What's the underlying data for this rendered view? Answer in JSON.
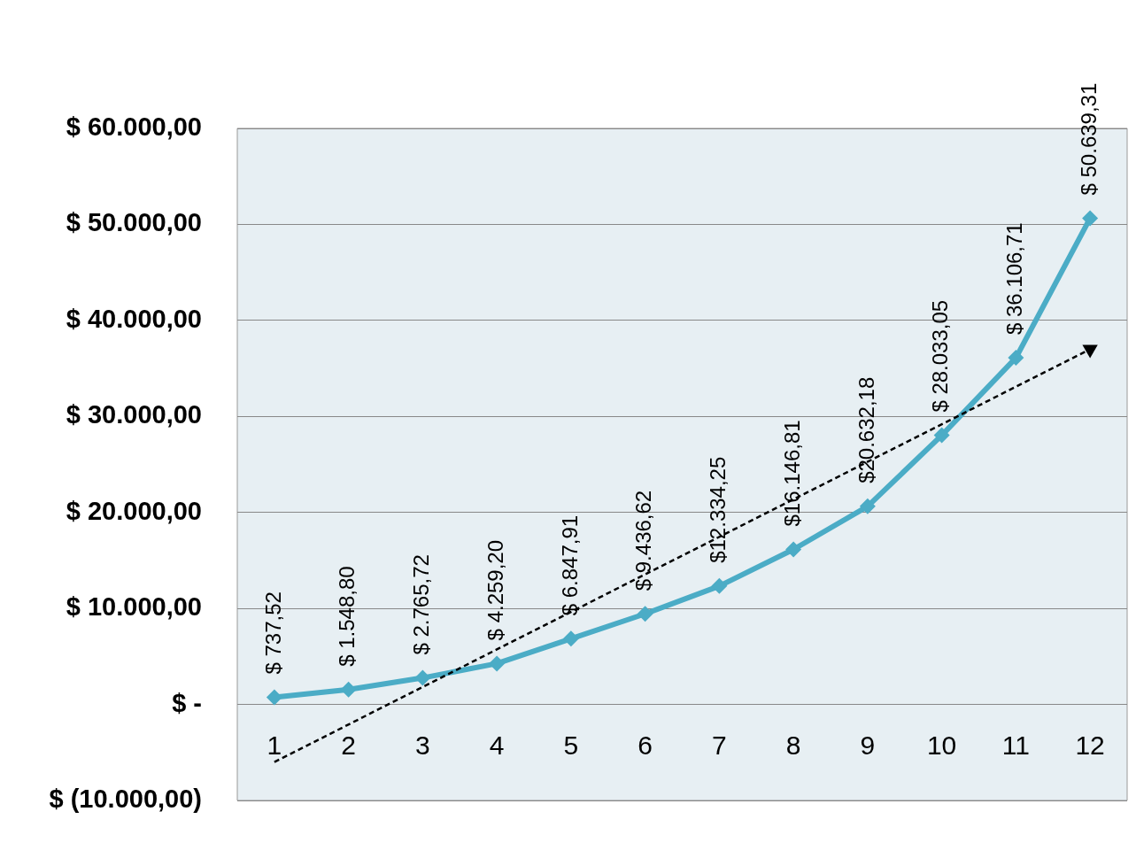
{
  "chart_data": {
    "type": "line",
    "x": [
      1,
      2,
      3,
      4,
      5,
      6,
      7,
      8,
      9,
      10,
      11,
      12
    ],
    "xlim": [
      0.5,
      12.5
    ],
    "xticks": [
      1,
      2,
      3,
      4,
      5,
      6,
      7,
      8,
      9,
      10,
      11,
      12
    ],
    "ylim": [
      -10000,
      60000
    ],
    "yticks": [
      {
        "value": -10000,
        "label": "$ (10.000,00)"
      },
      {
        "value": 0,
        "label": "$ -"
      },
      {
        "value": 10000,
        "label": "$ 10.000,00"
      },
      {
        "value": 20000,
        "label": "$ 20.000,00"
      },
      {
        "value": 30000,
        "label": "$ 30.000,00"
      },
      {
        "value": 40000,
        "label": "$ 40.000,00"
      },
      {
        "value": 50000,
        "label": "$ 50.000,00"
      },
      {
        "value": 60000,
        "label": "$ 60.000,00"
      }
    ],
    "grid": "y",
    "legend": false,
    "series": [
      {
        "color": "#4bacc6",
        "marker": "diamond",
        "line_style": "solid",
        "values": [
          737.52,
          1548.8,
          2765.72,
          4259.2,
          6847.91,
          9436.62,
          12334.25,
          16146.81,
          20632.18,
          28033.05,
          36106.71,
          50639.31
        ],
        "value_labels": [
          "$ 737,52",
          "$ 1.548,80",
          "$ 2.765,72",
          "$ 4.259,20",
          "$ 6.847,91",
          "$ 9.436,62",
          "$12.334,25",
          "$16.146,81",
          "$20.632,18",
          "$ 28.033,05",
          "$ 36.106,71",
          "$ 50.639,31"
        ]
      },
      {
        "type": "line",
        "color": "#000000",
        "marker": "triangle",
        "line_style": "dashed",
        "x": [
          1,
          12
        ],
        "values": [
          -6000,
          37000
        ]
      }
    ]
  }
}
